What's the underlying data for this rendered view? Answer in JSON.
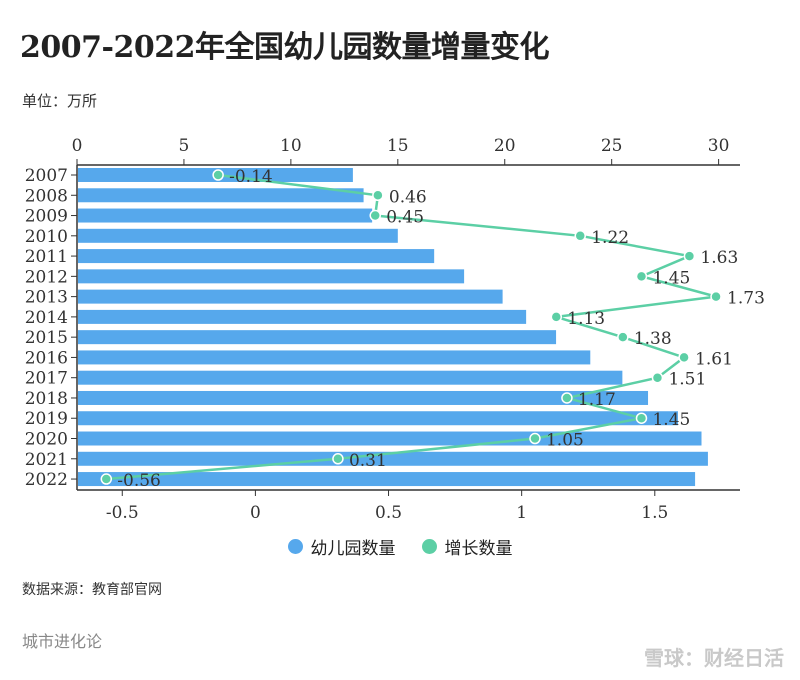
{
  "title": "2007-2022年全国幼儿园数量增量变化",
  "unit": "单位：万所",
  "source": "数据来源：教育部官网",
  "brand": "城市进化论",
  "watermark": "雪球：财经日活",
  "chart_data": {
    "type": "bar+line",
    "orientation": "horizontal",
    "categories": [
      "2007",
      "2008",
      "2009",
      "2010",
      "2011",
      "2012",
      "2013",
      "2014",
      "2015",
      "2016",
      "2017",
      "2018",
      "2019",
      "2020",
      "2021",
      "2022"
    ],
    "series": [
      {
        "name": "幼儿园数量",
        "type": "bar",
        "axis": "top",
        "color": "#56a8ec",
        "values": [
          12.9,
          13.4,
          13.8,
          15.0,
          16.7,
          18.1,
          19.9,
          21.0,
          22.4,
          24.0,
          25.5,
          26.7,
          28.1,
          29.2,
          29.5,
          28.9
        ]
      },
      {
        "name": "增长数量",
        "type": "line",
        "axis": "bottom",
        "color": "#5ccfa5",
        "values": [
          -0.14,
          0.46,
          0.45,
          1.22,
          1.63,
          1.45,
          1.73,
          1.13,
          1.38,
          1.61,
          1.51,
          1.17,
          1.45,
          1.05,
          0.31,
          -0.56
        ],
        "labels": [
          "-0.14",
          "0.46",
          "0.45",
          "1.22",
          "1.63",
          "1.45",
          "1.73",
          "1.13",
          "1.38",
          "1.61",
          "1.51",
          "1.17",
          "1.45",
          "1.05",
          "0.31",
          "-0.56"
        ]
      }
    ],
    "top_axis": {
      "range": [
        0,
        31
      ],
      "ticks": [
        "0",
        "5",
        "10",
        "15",
        "20",
        "25",
        "30"
      ]
    },
    "bottom_axis": {
      "range": [
        -0.67,
        1.82
      ],
      "ticks": [
        "-0.5",
        "0",
        "0.5",
        "1",
        "1.5"
      ]
    },
    "legend_position": "bottom",
    "grid": false
  }
}
